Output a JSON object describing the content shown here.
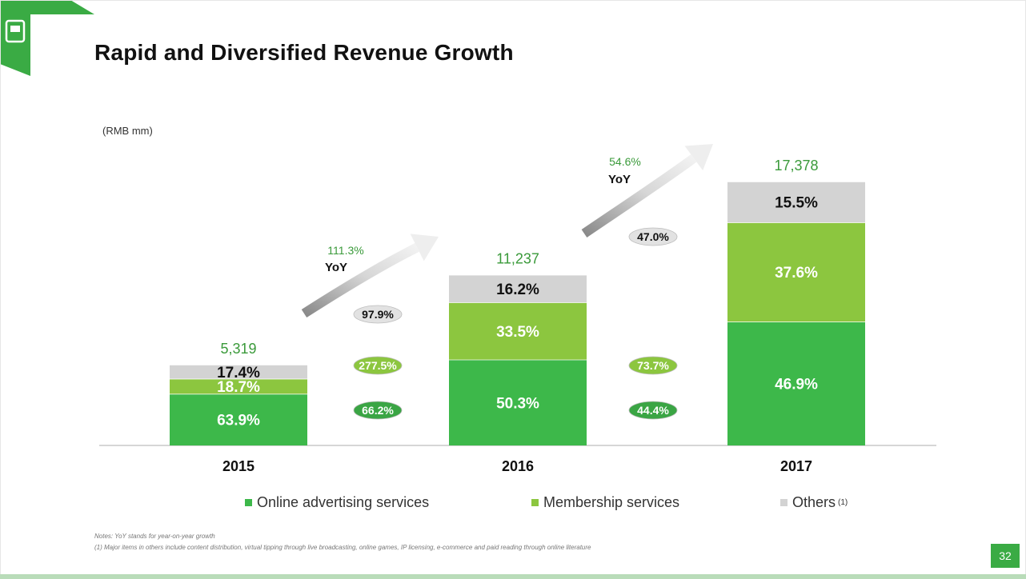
{
  "slide": {
    "title": "Rapid and Diversified Revenue Growth",
    "unit": "(RMB mm)",
    "page_number": "32",
    "notes": [
      "Notes: YoY stands for year-on-year growth",
      "(1) Major items in others include content distribution, virtual tipping through live broadcasting, online games, IP licensing, e-commerce and paid reading through online literature"
    ]
  },
  "colors": {
    "advertising": "#3db84a",
    "membership": "#8cc63f",
    "others": "#d3d3d3",
    "total_text": "#3a9a3a",
    "axis": "#c8c8c8",
    "brand": "#3aab44"
  },
  "chart_data": {
    "type": "bar",
    "stacked": true,
    "categories": [
      "2015",
      "2016",
      "2017"
    ],
    "totals": [
      5319,
      11237,
      17378
    ],
    "total_labels": [
      "5,319",
      "11,237",
      "17,378"
    ],
    "ylim": [
      0,
      17378
    ],
    "series": [
      {
        "name": "Online advertising services",
        "key": "advertising",
        "percent": [
          63.9,
          50.3,
          46.9
        ],
        "labels": [
          "63.9%",
          "50.3%",
          "46.9%"
        ]
      },
      {
        "name": "Membership services",
        "key": "membership",
        "percent": [
          18.7,
          33.5,
          37.6
        ],
        "labels": [
          "18.7%",
          "33.5%",
          "37.6%"
        ]
      },
      {
        "name": "Others",
        "key": "others",
        "percent": [
          17.4,
          16.2,
          15.5
        ],
        "labels": [
          "17.4%",
          "16.2%",
          "15.5%"
        ]
      }
    ],
    "segment_growth": [
      {
        "between": [
          "2015",
          "2016"
        ],
        "others": "97.9%",
        "membership": "277.5%",
        "advertising": "66.2%"
      },
      {
        "between": [
          "2016",
          "2017"
        ],
        "others": "47.0%",
        "membership": "73.7%",
        "advertising": "44.4%"
      }
    ],
    "yoy_total": [
      {
        "between": [
          "2015",
          "2016"
        ],
        "value": "111.3%",
        "label": "YoY"
      },
      {
        "between": [
          "2016",
          "2017"
        ],
        "value": "54.6%",
        "label": "YoY"
      }
    ],
    "legend": [
      {
        "label": "Online advertising services",
        "key": "advertising"
      },
      {
        "label": "Membership services",
        "key": "membership"
      },
      {
        "label": "Others",
        "key": "others",
        "superscript": "(1)"
      }
    ]
  }
}
